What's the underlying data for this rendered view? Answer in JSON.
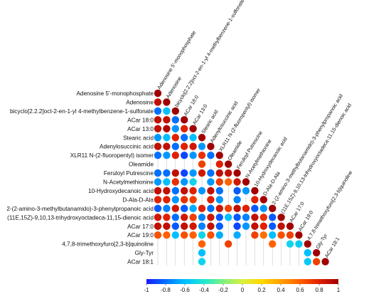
{
  "chart_data": {
    "type": "heatmap",
    "variables": [
      "Adenosine 5'-monophosphate",
      "Adenosine",
      "bicyclo[2.2.2]oct-2-en-1-yl 4-methylbenzene-1-sulfonate",
      "ACar 18:0",
      "ACar 13:0",
      "Stearic acid",
      "Adenylosuccinic acid",
      "XLR11 N-(2-fluoropentyl) isomer",
      "Oleamide",
      "Feruloyl Putrescine",
      "N-Acetylmethionine",
      "10-Hydroxydecanoic acid",
      "D-Ala-D-Ala",
      "2-(2-amino-3-methylbutanamido)-3-phenylpropanoic acid",
      "(11E,15Z)-9,10,13-trihydroxyoctadeca-11,15-dienoic acid",
      "ACar 17:0",
      "ACar 19:0",
      "4,7,8-trimethoxyfuro[2,3-b]quinoline",
      "Gly-Tyr",
      "ACar 18:1"
    ],
    "cells": [
      {
        "row": 0,
        "col": 0,
        "value": 1.0
      },
      {
        "row": 1,
        "col": 0,
        "value": 0.9
      },
      {
        "row": 1,
        "col": 1,
        "value": 1.0
      },
      {
        "row": 2,
        "col": 0,
        "value": -0.8
      },
      {
        "row": 2,
        "col": 1,
        "value": -0.6
      },
      {
        "row": 2,
        "col": 2,
        "value": 1.0
      },
      {
        "row": 3,
        "col": 0,
        "value": 0.9
      },
      {
        "row": 3,
        "col": 1,
        "value": 0.9
      },
      {
        "row": 3,
        "col": 2,
        "value": -0.8
      },
      {
        "row": 3,
        "col": 3,
        "value": 1.0
      },
      {
        "row": 4,
        "col": 0,
        "value": 0.9
      },
      {
        "row": 4,
        "col": 1,
        "value": 0.95
      },
      {
        "row": 4,
        "col": 2,
        "value": -0.7
      },
      {
        "row": 4,
        "col": 3,
        "value": 0.8
      },
      {
        "row": 4,
        "col": 4,
        "value": 1.0
      },
      {
        "row": 5,
        "col": 0,
        "value": -0.7
      },
      {
        "row": 5,
        "col": 1,
        "value": -0.6
      },
      {
        "row": 5,
        "col": 2,
        "value": 0.8
      },
      {
        "row": 5,
        "col": 3,
        "value": -0.8
      },
      {
        "row": 5,
        "col": 4,
        "value": -0.6
      },
      {
        "row": 5,
        "col": 5,
        "value": 1.0
      },
      {
        "row": 6,
        "col": 0,
        "value": 0.9
      },
      {
        "row": 6,
        "col": 1,
        "value": 0.9
      },
      {
        "row": 6,
        "col": 2,
        "value": -0.8
      },
      {
        "row": 6,
        "col": 3,
        "value": 0.8
      },
      {
        "row": 6,
        "col": 4,
        "value": 0.85
      },
      {
        "row": 6,
        "col": 5,
        "value": -0.7
      },
      {
        "row": 6,
        "col": 6,
        "value": 1.0
      },
      {
        "row": 7,
        "col": 0,
        "value": -0.8
      },
      {
        "row": 7,
        "col": 1,
        "value": -0.7
      },
      {
        "row": 7,
        "col": 2,
        "value": 0.8
      },
      {
        "row": 7,
        "col": 3,
        "value": -0.9
      },
      {
        "row": 7,
        "col": 4,
        "value": -0.7
      },
      {
        "row": 7,
        "col": 5,
        "value": 0.75
      },
      {
        "row": 7,
        "col": 6,
        "value": -0.8
      },
      {
        "row": 7,
        "col": 7,
        "value": 1.0
      },
      {
        "row": 8,
        "col": 5,
        "value": 0.7
      },
      {
        "row": 8,
        "col": 7,
        "value": 0.8
      },
      {
        "row": 8,
        "col": 8,
        "value": 1.0
      },
      {
        "row": 9,
        "col": 0,
        "value": -0.8
      },
      {
        "row": 9,
        "col": 1,
        "value": -0.8
      },
      {
        "row": 9,
        "col": 2,
        "value": 0.9
      },
      {
        "row": 9,
        "col": 3,
        "value": -0.9
      },
      {
        "row": 9,
        "col": 4,
        "value": -0.7
      },
      {
        "row": 9,
        "col": 5,
        "value": 0.85
      },
      {
        "row": 9,
        "col": 6,
        "value": -0.8
      },
      {
        "row": 9,
        "col": 7,
        "value": 0.9
      },
      {
        "row": 9,
        "col": 8,
        "value": 0.9
      },
      {
        "row": 9,
        "col": 9,
        "value": 1.0
      },
      {
        "row": 10,
        "col": 0,
        "value": -0.7
      },
      {
        "row": 10,
        "col": 1,
        "value": -0.6
      },
      {
        "row": 10,
        "col": 2,
        "value": 0.75
      },
      {
        "row": 10,
        "col": 3,
        "value": -0.7
      },
      {
        "row": 10,
        "col": 4,
        "value": -0.5
      },
      {
        "row": 10,
        "col": 6,
        "value": -0.7
      },
      {
        "row": 10,
        "col": 7,
        "value": 0.7
      },
      {
        "row": 10,
        "col": 8,
        "value": 0.6
      },
      {
        "row": 10,
        "col": 9,
        "value": 0.85
      },
      {
        "row": 10,
        "col": 10,
        "value": 1.0
      },
      {
        "row": 11,
        "col": 0,
        "value": 0.9
      },
      {
        "row": 11,
        "col": 1,
        "value": 0.9
      },
      {
        "row": 11,
        "col": 2,
        "value": -0.8
      },
      {
        "row": 11,
        "col": 3,
        "value": 0.9
      },
      {
        "row": 11,
        "col": 4,
        "value": 0.8
      },
      {
        "row": 11,
        "col": 5,
        "value": -0.7
      },
      {
        "row": 11,
        "col": 6,
        "value": 0.9
      },
      {
        "row": 11,
        "col": 7,
        "value": -0.8
      },
      {
        "row": 11,
        "col": 9,
        "value": -0.85
      },
      {
        "row": 11,
        "col": 10,
        "value": -0.7
      },
      {
        "row": 11,
        "col": 11,
        "value": 1.0
      },
      {
        "row": 12,
        "col": 0,
        "value": 0.8
      },
      {
        "row": 12,
        "col": 1,
        "value": 0.8
      },
      {
        "row": 12,
        "col": 2,
        "value": -0.7
      },
      {
        "row": 12,
        "col": 3,
        "value": 0.75
      },
      {
        "row": 12,
        "col": 4,
        "value": 0.7
      },
      {
        "row": 12,
        "col": 6,
        "value": 0.8
      },
      {
        "row": 12,
        "col": 7,
        "value": -0.7
      },
      {
        "row": 12,
        "col": 9,
        "value": -0.75
      },
      {
        "row": 12,
        "col": 11,
        "value": 0.8
      },
      {
        "row": 12,
        "col": 12,
        "value": 1.0
      },
      {
        "row": 13,
        "col": 0,
        "value": -0.85
      },
      {
        "row": 13,
        "col": 1,
        "value": -0.75
      },
      {
        "row": 13,
        "col": 2,
        "value": 0.85
      },
      {
        "row": 13,
        "col": 3,
        "value": -0.85
      },
      {
        "row": 13,
        "col": 4,
        "value": -0.65
      },
      {
        "row": 13,
        "col": 5,
        "value": 0.8
      },
      {
        "row": 13,
        "col": 6,
        "value": -0.8
      },
      {
        "row": 13,
        "col": 7,
        "value": 0.85
      },
      {
        "row": 13,
        "col": 8,
        "value": 0.7
      },
      {
        "row": 13,
        "col": 9,
        "value": 0.9
      },
      {
        "row": 13,
        "col": 10,
        "value": 0.8
      },
      {
        "row": 13,
        "col": 11,
        "value": -0.85
      },
      {
        "row": 13,
        "col": 12,
        "value": -0.7
      },
      {
        "row": 13,
        "col": 13,
        "value": 1.0
      },
      {
        "row": 14,
        "col": 0,
        "value": 0.85
      },
      {
        "row": 14,
        "col": 1,
        "value": 0.8
      },
      {
        "row": 14,
        "col": 2,
        "value": -0.8
      },
      {
        "row": 14,
        "col": 3,
        "value": 0.85
      },
      {
        "row": 14,
        "col": 4,
        "value": 0.7
      },
      {
        "row": 14,
        "col": 5,
        "value": -0.75
      },
      {
        "row": 14,
        "col": 6,
        "value": 0.85
      },
      {
        "row": 14,
        "col": 7,
        "value": -0.85
      },
      {
        "row": 14,
        "col": 8,
        "value": -0.6
      },
      {
        "row": 14,
        "col": 9,
        "value": -0.85
      },
      {
        "row": 14,
        "col": 10,
        "value": -0.75
      },
      {
        "row": 14,
        "col": 11,
        "value": 0.9
      },
      {
        "row": 14,
        "col": 12,
        "value": 0.75
      },
      {
        "row": 14,
        "col": 13,
        "value": -0.85
      },
      {
        "row": 14,
        "col": 14,
        "value": 1.0
      },
      {
        "row": 15,
        "col": 0,
        "value": 0.9
      },
      {
        "row": 15,
        "col": 1,
        "value": 0.9
      },
      {
        "row": 15,
        "col": 2,
        "value": -0.85
      },
      {
        "row": 15,
        "col": 3,
        "value": 0.9
      },
      {
        "row": 15,
        "col": 4,
        "value": 0.85
      },
      {
        "row": 15,
        "col": 5,
        "value": -0.75
      },
      {
        "row": 15,
        "col": 6,
        "value": 0.9
      },
      {
        "row": 15,
        "col": 7,
        "value": -0.85
      },
      {
        "row": 15,
        "col": 9,
        "value": -0.9
      },
      {
        "row": 15,
        "col": 10,
        "value": -0.7
      },
      {
        "row": 15,
        "col": 11,
        "value": 0.9
      },
      {
        "row": 15,
        "col": 12,
        "value": 0.8
      },
      {
        "row": 15,
        "col": 13,
        "value": -0.85
      },
      {
        "row": 15,
        "col": 14,
        "value": 0.9
      },
      {
        "row": 15,
        "col": 15,
        "value": 1.0
      },
      {
        "row": 16,
        "col": 0,
        "value": 0.65
      },
      {
        "row": 16,
        "col": 1,
        "value": 0.6
      },
      {
        "row": 16,
        "col": 2,
        "value": -0.6
      },
      {
        "row": 16,
        "col": 3,
        "value": 0.65
      },
      {
        "row": 16,
        "col": 4,
        "value": 0.6
      },
      {
        "row": 16,
        "col": 5,
        "value": -0.5
      },
      {
        "row": 16,
        "col": 6,
        "value": 0.65
      },
      {
        "row": 16,
        "col": 7,
        "value": -0.65
      },
      {
        "row": 16,
        "col": 9,
        "value": -0.65
      },
      {
        "row": 16,
        "col": 11,
        "value": 0.7
      },
      {
        "row": 16,
        "col": 12,
        "value": 0.55
      },
      {
        "row": 16,
        "col": 13,
        "value": -0.6
      },
      {
        "row": 16,
        "col": 14,
        "value": 0.65
      },
      {
        "row": 16,
        "col": 15,
        "value": 0.7
      },
      {
        "row": 16,
        "col": 16,
        "value": 1.0
      },
      {
        "row": 17,
        "col": 5,
        "value": 0.6
      },
      {
        "row": 17,
        "col": 8,
        "value": 0.7
      },
      {
        "row": 17,
        "col": 13,
        "value": 0.6
      },
      {
        "row": 17,
        "col": 15,
        "value": -0.5
      },
      {
        "row": 17,
        "col": 16,
        "value": -0.55
      },
      {
        "row": 17,
        "col": 17,
        "value": 1.0
      },
      {
        "row": 18,
        "col": 5,
        "value": -0.6
      },
      {
        "row": 18,
        "col": 17,
        "value": -0.6
      },
      {
        "row": 18,
        "col": 18,
        "value": 1.0
      },
      {
        "row": 19,
        "col": 5,
        "value": -0.5
      },
      {
        "row": 19,
        "col": 17,
        "value": -0.55
      },
      {
        "row": 19,
        "col": 18,
        "value": 0.7
      },
      {
        "row": 19,
        "col": 19,
        "value": 1.0
      }
    ],
    "colorbar": {
      "ticks": [
        "-1",
        "-0.8",
        "-0.6",
        "-0.4",
        "-0.2",
        "0",
        "0.2",
        "0.4",
        "0.6",
        "0.8",
        "1"
      ],
      "range": [
        -1,
        1
      ],
      "colors": [
        "#1a1aff",
        "#0070ff",
        "#00c0ff",
        "#20e8d0",
        "#80f080",
        "#d8f040",
        "#ffd800",
        "#ffa000",
        "#ff6000",
        "#e02000",
        "#a00000"
      ]
    }
  }
}
